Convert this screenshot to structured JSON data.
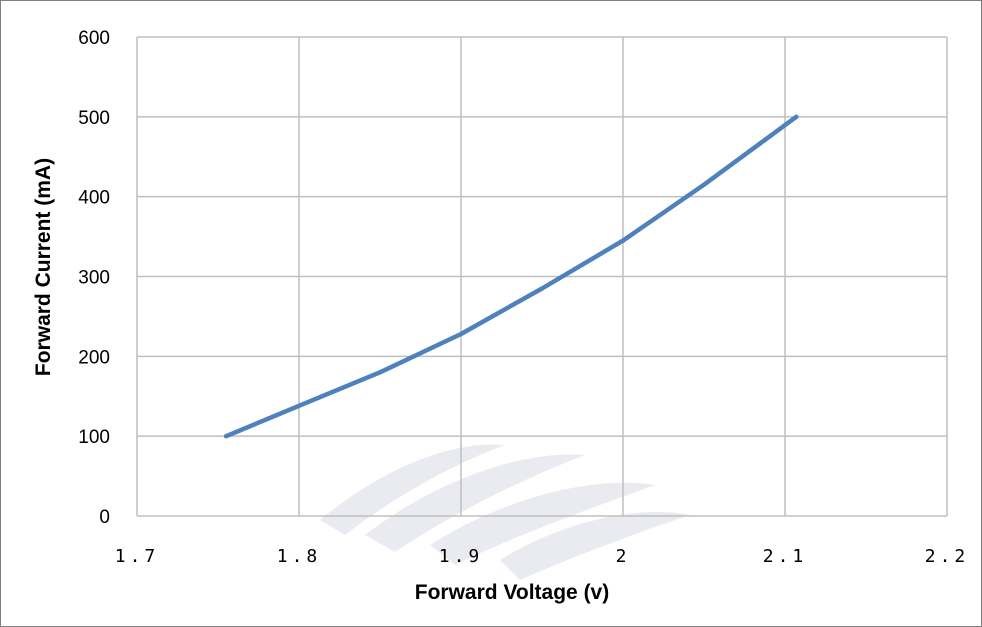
{
  "chart_data": {
    "type": "line",
    "title": "",
    "xlabel": "Forward Voltage (v)",
    "ylabel": "Forward Current  (mA)",
    "xlim": [
      1.7,
      2.2
    ],
    "ylim": [
      0,
      600
    ],
    "x_ticks": [
      "1.7",
      "1.8",
      "1.9",
      "2",
      "2.1",
      "2.2"
    ],
    "y_ticks": [
      "0",
      "100",
      "200",
      "300",
      "400",
      "500",
      "600"
    ],
    "grid": true,
    "legend": "none",
    "series": [
      {
        "color": "#4f81bd",
        "points": [
          {
            "x": 1.755,
            "y": 100
          },
          {
            "x": 1.8,
            "y": 138
          },
          {
            "x": 1.85,
            "y": 180
          },
          {
            "x": 1.9,
            "y": 228
          },
          {
            "x": 1.95,
            "y": 285
          },
          {
            "x": 2.0,
            "y": 345
          },
          {
            "x": 2.05,
            "y": 415
          },
          {
            "x": 2.107,
            "y": 500
          }
        ]
      }
    ]
  },
  "colors": {
    "series": "#4f81bd",
    "grid": "#bfbfbf",
    "frame": "#7f7f7f"
  }
}
